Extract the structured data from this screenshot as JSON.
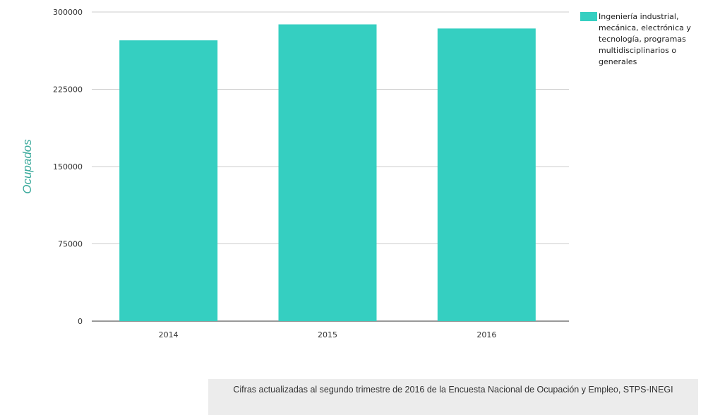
{
  "chart_data": {
    "type": "bar",
    "categories": [
      "2014",
      "2015",
      "2016"
    ],
    "series": [
      {
        "name": "Ingeniería industrial, mecánica, electrónica y tecnología, programas multidisciplinarios o generales",
        "values": [
          272500,
          288000,
          284000
        ],
        "color": "#35cfc1"
      }
    ],
    "title": "",
    "xlabel": "",
    "ylabel": "Ocupados",
    "ylim": [
      0,
      300000
    ],
    "yticks": [
      0,
      75000,
      150000,
      225000,
      300000
    ],
    "grid": true,
    "legend_position": "top-right",
    "axis_label_color": "#3aa99b",
    "grid_color": "#cccccc"
  },
  "legend": {
    "label": "Ingeniería industrial, mecánica, electrónica y tecnología, programas multidisciplinarios o generales",
    "color": "#35cfc1"
  },
  "footer": {
    "source_note": "Cifras actualizadas al segundo trimestre de 2016 de la Encuesta Nacional de Ocupación y Empleo, STPS-INEGI"
  }
}
